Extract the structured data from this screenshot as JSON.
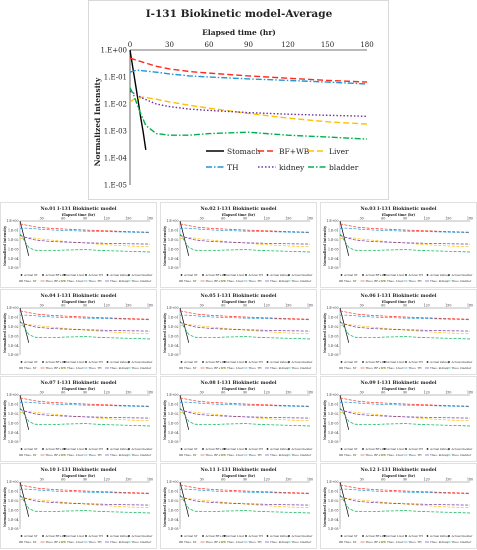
{
  "chart_data": [
    {
      "type": "line",
      "title": "I-131 Biokinetic model-Average",
      "xlabel": "Elapsed  time (hr)",
      "ylabel": "Normalized Intensity",
      "xlim": [
        0,
        180
      ],
      "xticks": [
        0,
        30,
        60,
        90,
        120,
        150,
        180
      ],
      "yscale": "log",
      "ylim": [
        1e-05,
        1
      ],
      "yticks": [
        "1.E+00",
        "1.E-01",
        "1.E-02",
        "1.E-03",
        "1.E-04",
        "1.E-05"
      ],
      "legend_position": "bottom",
      "series": [
        {
          "name": "Stomach",
          "color": "#000000",
          "style": "solid",
          "x": [
            0,
            2,
            4,
            6,
            8,
            10,
            12
          ],
          "y": [
            1.0,
            0.25,
            0.06,
            0.015,
            0.0035,
            0.0009,
            0.0002
          ]
        },
        {
          "name": "BF+WB",
          "color": "#ff2a1a",
          "style": "dash",
          "x": [
            0,
            5,
            10,
            20,
            30,
            45,
            60,
            90,
            120,
            150,
            180
          ],
          "y": [
            0.5,
            0.42,
            0.35,
            0.25,
            0.2,
            0.16,
            0.14,
            0.11,
            0.09,
            0.075,
            0.065
          ]
        },
        {
          "name": "Liver",
          "color": "#ffc000",
          "style": "dash",
          "x": [
            0,
            3,
            10,
            20,
            30,
            45,
            60,
            90,
            120,
            150,
            180
          ],
          "y": [
            0.012,
            0.015,
            0.018,
            0.015,
            0.012,
            0.009,
            0.007,
            0.0045,
            0.003,
            0.0022,
            0.0018
          ]
        },
        {
          "name": "TH",
          "color": "#2196d8",
          "style": "dashdot",
          "x": [
            0,
            5,
            10,
            20,
            30,
            45,
            60,
            90,
            120,
            150,
            180
          ],
          "y": [
            0.15,
            0.18,
            0.17,
            0.15,
            0.13,
            0.11,
            0.1,
            0.085,
            0.075,
            0.065,
            0.055
          ]
        },
        {
          "name": "kidney",
          "color": "#7030a0",
          "style": "dot",
          "x": [
            0,
            5,
            10,
            20,
            30,
            45,
            60,
            90,
            120,
            150,
            180
          ],
          "y": [
            0.03,
            0.022,
            0.016,
            0.01,
            0.008,
            0.0065,
            0.0058,
            0.0048,
            0.0042,
            0.0038,
            0.0035
          ]
        },
        {
          "name": "bladder",
          "color": "#00b050",
          "style": "dashdot",
          "x": [
            0,
            3,
            7,
            12,
            20,
            30,
            45,
            60,
            90,
            120,
            150,
            180
          ],
          "y": [
            0.04,
            0.02,
            0.006,
            0.0016,
            0.0008,
            0.0007,
            0.0007,
            0.0008,
            0.0009,
            0.0007,
            0.0006,
            0.0005
          ]
        }
      ]
    }
  ],
  "panels": [
    {
      "title": "No.01 I-131 Biokinetic model"
    },
    {
      "title": "No.02 I-131 Biokinetic model"
    },
    {
      "title": "No.03 I-131 Biokinetic model"
    },
    {
      "title": "No.04 I-131 Biokinetic model"
    },
    {
      "title": "No.05 I-131 Biokinetic model"
    },
    {
      "title": "No.06 I-131 Biokinetic model"
    },
    {
      "title": "No.07 I-131 Biokinetic model"
    },
    {
      "title": "No.08 I-131 Biokinetic model"
    },
    {
      "title": "No.09 I-131 Biokinetic model"
    },
    {
      "title": "No.10 I-131 Biokinetic model"
    },
    {
      "title": "No.11 I-131 Biokinetic model"
    },
    {
      "title": "No.12 I-131 Biokinetic model"
    }
  ],
  "panel_common": {
    "xlabel": "Elapsed  time (hr)",
    "ylabel": "Normalized Intensity",
    "xticks": [
      "30",
      "60",
      "90",
      "120",
      "150",
      "180"
    ],
    "yticks": [
      "1.E+00",
      "1.E-01",
      "1.E-02",
      "1.E-03",
      "1.E-04",
      "1.E-05"
    ],
    "legend": [
      "Actual ST",
      "Actual BF+WB",
      "Actual Liver",
      "Actual TH",
      "Actual kidney",
      "Actual bladder",
      "Theo. ST",
      "Theo. BF+WB",
      "Theo. Liver",
      "Theo. TH",
      "Theo. kidney",
      "Theo. bladder"
    ]
  }
}
